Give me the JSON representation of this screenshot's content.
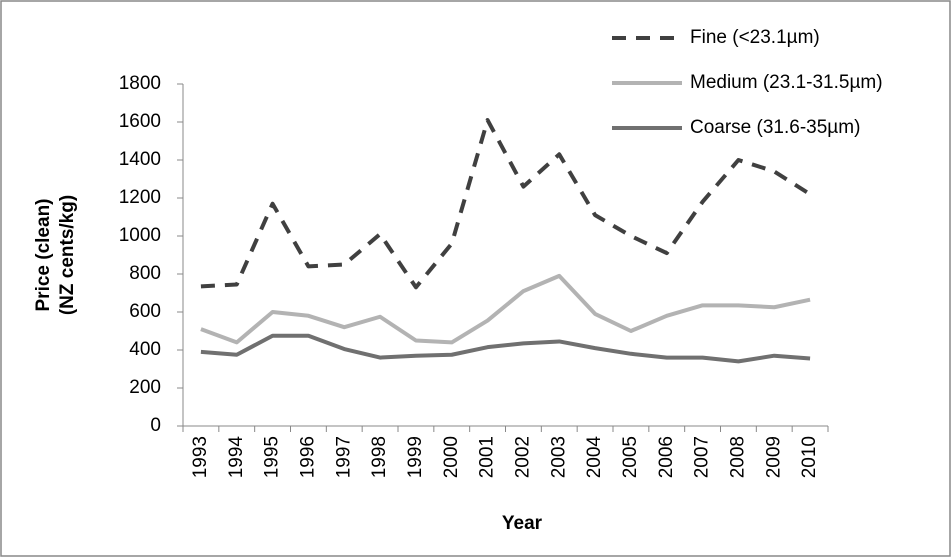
{
  "chart_data": {
    "type": "line",
    "ylabel": [
      "Price (clean)",
      "(NZ cents/kg)"
    ],
    "xlabel": "Year",
    "categories": [
      "1993",
      "1994",
      "1995",
      "1996",
      "1997",
      "1998",
      "1999",
      "2000",
      "2001",
      "2002",
      "2003",
      "2004",
      "2005",
      "2006",
      "2007",
      "2008",
      "2009",
      "2010"
    ],
    "series": [
      {
        "name": "Fine (<23.1µm)",
        "color": "#404040",
        "style": "dashed",
        "values": [
          735,
          745,
          1170,
          840,
          850,
          1010,
          730,
          960,
          1610,
          1260,
          1430,
          1110,
          1000,
          910,
          1180,
          1400,
          1340,
          1220
        ]
      },
      {
        "name": "Medium (23.1-31.5µm)",
        "color": "#b3b3b3",
        "style": "solid",
        "values": [
          510,
          440,
          600,
          580,
          520,
          575,
          450,
          440,
          555,
          710,
          790,
          590,
          500,
          580,
          635,
          635,
          625,
          665
        ]
      },
      {
        "name": "Coarse (31.6-35µm)",
        "color": "#707070",
        "style": "solid",
        "values": [
          390,
          375,
          475,
          475,
          405,
          360,
          370,
          375,
          415,
          435,
          445,
          410,
          380,
          360,
          360,
          340,
          370,
          355
        ]
      }
    ],
    "ylim": [
      0,
      1800
    ],
    "yticks": [
      0,
      200,
      400,
      600,
      800,
      1000,
      1200,
      1400,
      1600,
      1800
    ],
    "legend": "top-right"
  }
}
